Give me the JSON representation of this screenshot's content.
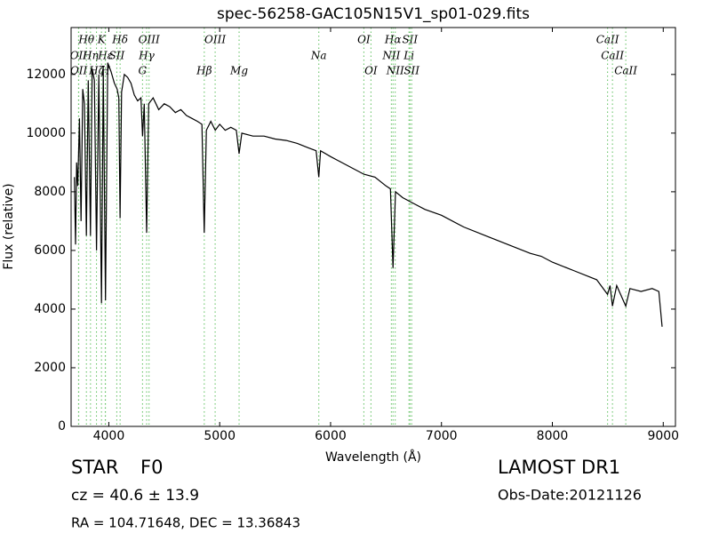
{
  "chart_data": {
    "type": "line",
    "title": "spec-56258-GAC105N15V1_sp01-029.fits",
    "x_label": "Wavelength (Å)",
    "y_label": "Flux (relative)",
    "xlim": [
      3660,
      9110
    ],
    "ylim": [
      0,
      13600
    ],
    "xticks": [
      4000,
      5000,
      6000,
      7000,
      8000,
      9000
    ],
    "yticks": [
      0,
      2000,
      4000,
      6000,
      8000,
      10000,
      12000
    ],
    "x": [
      3690,
      3700,
      3710,
      3720,
      3735,
      3750,
      3765,
      3780,
      3798,
      3815,
      3835,
      3850,
      3870,
      3889,
      3910,
      3934,
      3950,
      3970,
      3990,
      4020,
      4050,
      4075,
      4090,
      4102,
      4115,
      4140,
      4170,
      4200,
      4230,
      4260,
      4290,
      4304,
      4320,
      4341,
      4360,
      4400,
      4450,
      4500,
      4550,
      4600,
      4650,
      4700,
      4750,
      4800,
      4840,
      4861,
      4880,
      4920,
      4960,
      5000,
      5050,
      5100,
      5150,
      5175,
      5200,
      5300,
      5400,
      5500,
      5600,
      5700,
      5800,
      5870,
      5894,
      5910,
      6000,
      6100,
      6200,
      6300,
      6400,
      6500,
      6540,
      6563,
      6585,
      6650,
      6750,
      6850,
      7000,
      7200,
      7400,
      7600,
      7800,
      7900,
      8000,
      8200,
      8400,
      8498,
      8520,
      8542,
      8580,
      8662,
      8700,
      8800,
      8900,
      8960,
      8990
    ],
    "series": [
      {
        "color": "#000000",
        "values": [
          8500,
          6200,
          9000,
          8200,
          10500,
          7000,
          11500,
          11000,
          6500,
          11800,
          6500,
          12200,
          11800,
          6000,
          12000,
          4200,
          12200,
          4300,
          12400,
          12100,
          11700,
          11500,
          11200,
          7100,
          11400,
          12000,
          11900,
          11700,
          11300,
          11100,
          11200,
          9900,
          11000,
          6600,
          11000,
          11200,
          10800,
          11000,
          10900,
          10700,
          10800,
          10600,
          10500,
          10400,
          10300,
          6600,
          10100,
          10400,
          10100,
          10300,
          10100,
          10200,
          10100,
          9300,
          10000,
          9900,
          9900,
          9800,
          9750,
          9650,
          9500,
          9400,
          8500,
          9400,
          9200,
          9000,
          8800,
          8600,
          8500,
          8200,
          8100,
          5400,
          8000,
          7800,
          7600,
          7400,
          7200,
          6800,
          6500,
          6200,
          5900,
          5800,
          5600,
          5300,
          5000,
          4500,
          4800,
          4100,
          4800,
          4100,
          4700,
          4600,
          4700,
          4600,
          3400
        ]
      }
    ],
    "line_color": "#5cbf5c",
    "line_labels": [
      [
        {
          "label": "Hθ",
          "wavelength": 3798
        },
        {
          "label": "K",
          "wavelength": 3934
        },
        {
          "label": "Hδ",
          "wavelength": 4102
        },
        {
          "label": "OIII",
          "wavelength": 4363
        },
        {
          "label": "OIII",
          "wavelength": 4959
        },
        {
          "label": "OI",
          "wavelength": 6300
        },
        {
          "label": "Hα",
          "wavelength": 6563
        },
        {
          "label": "SII",
          "wavelength": 6716
        },
        {
          "label": "CaII",
          "wavelength": 8498
        }
      ],
      [
        {
          "label": "OII",
          "wavelength": 3727
        },
        {
          "label": "Hη",
          "wavelength": 3835
        },
        {
          "label": "Hε",
          "wavelength": 3970
        },
        {
          "label": "SII",
          "wavelength": 4072
        },
        {
          "label": "Hγ",
          "wavelength": 4341
        },
        {
          "label": "Na",
          "wavelength": 5894
        },
        {
          "label": "NII",
          "wavelength": 6548
        },
        {
          "label": "Li",
          "wavelength": 6707
        },
        {
          "label": "CaII",
          "wavelength": 8542
        }
      ],
      [
        {
          "label": "OII",
          "wavelength": 3729
        },
        {
          "label": "Hζ",
          "wavelength": 3889
        },
        {
          "label": "H",
          "wavelength": 3968
        },
        {
          "label": "G",
          "wavelength": 4304
        },
        {
          "label": "Hβ",
          "wavelength": 4861
        },
        {
          "label": "Mg",
          "wavelength": 5175
        },
        {
          "label": "OI",
          "wavelength": 6364
        },
        {
          "label": "NII",
          "wavelength": 6583
        },
        {
          "label": "SII",
          "wavelength": 6731
        },
        {
          "label": "CaII",
          "wavelength": 8662
        }
      ]
    ],
    "object_class": "STAR",
    "subclass": "F0",
    "survey": "LAMOST DR1",
    "redshift": "cz = 40.6 ± 13.9",
    "obs_date": "Obs-Date:20121126",
    "coordinates": "RA = 104.71648, DEC = 13.36843"
  }
}
